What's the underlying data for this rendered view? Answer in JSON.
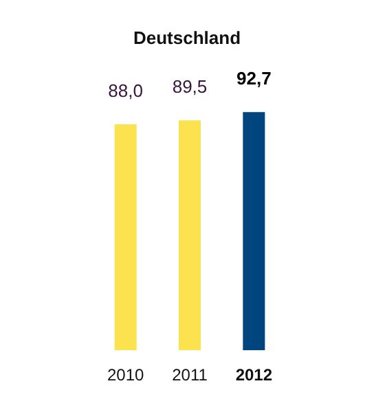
{
  "chart_data": {
    "type": "bar",
    "title": "Deutschland",
    "categories": [
      "2010",
      "2011",
      "2012"
    ],
    "values": [
      88.0,
      89.5,
      92.7
    ],
    "colors": [
      "#fde24f",
      "#fde24f",
      "#00457e"
    ],
    "value_labels": [
      "88,0",
      "89,5",
      "92,7"
    ]
  }
}
